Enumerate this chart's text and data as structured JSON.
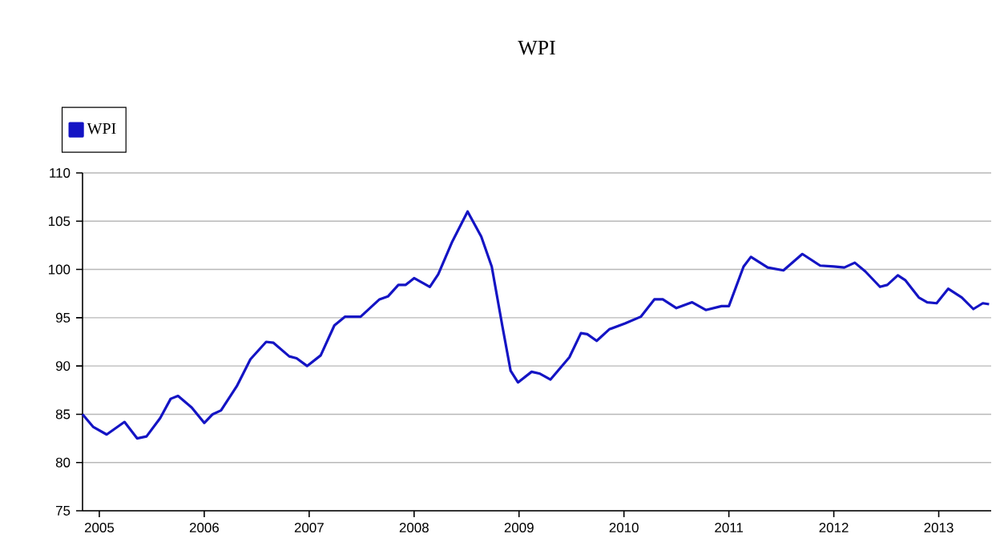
{
  "chart_data": {
    "type": "line",
    "title": "WPI",
    "series": [
      {
        "name": "WPI",
        "color": "#1414c4",
        "x": [
          2004.84,
          2004.94,
          2005.07,
          2005.24,
          2005.36,
          2005.45,
          2005.58,
          2005.68,
          2005.75,
          2005.88,
          2006.0,
          2006.08,
          2006.16,
          2006.31,
          2006.44,
          2006.59,
          2006.66,
          2006.81,
          2006.88,
          2006.98,
          2007.11,
          2007.24,
          2007.34,
          2007.49,
          2007.67,
          2007.75,
          2007.85,
          2007.92,
          2008.0,
          2008.15,
          2008.23,
          2008.36,
          2008.51,
          2008.64,
          2008.74,
          2008.84,
          2008.92,
          2008.99,
          2009.12,
          2009.2,
          2009.3,
          2009.37,
          2009.48,
          2009.59,
          2009.65,
          2009.74,
          2009.86,
          2010.01,
          2010.16,
          2010.29,
          2010.37,
          2010.5,
          2010.65,
          2010.78,
          2010.93,
          2011.0,
          2011.14,
          2011.21,
          2011.37,
          2011.52,
          2011.7,
          2011.87,
          2012.0,
          2012.1,
          2012.2,
          2012.3,
          2012.44,
          2012.51,
          2012.61,
          2012.68,
          2012.81,
          2012.89,
          2012.98,
          2013.09,
          2013.22,
          2013.33,
          2013.42,
          2013.48
        ],
        "values": [
          85.0,
          83.7,
          82.9,
          84.2,
          82.5,
          82.7,
          84.6,
          86.6,
          86.9,
          85.7,
          84.1,
          85.0,
          85.4,
          87.9,
          90.7,
          92.5,
          92.4,
          91.0,
          90.8,
          90.0,
          91.1,
          94.2,
          95.1,
          95.1,
          96.9,
          97.2,
          98.4,
          98.4,
          99.1,
          98.2,
          99.5,
          102.8,
          106.0,
          103.4,
          100.3,
          94.2,
          89.5,
          88.3,
          89.4,
          89.2,
          88.6,
          89.5,
          90.9,
          93.4,
          93.3,
          92.6,
          93.8,
          94.4,
          95.1,
          96.9,
          96.9,
          96.0,
          96.6,
          95.8,
          96.2,
          96.2,
          100.3,
          101.3,
          100.2,
          99.9,
          101.6,
          100.4,
          100.3,
          100.2,
          100.7,
          99.8,
          98.2,
          98.4,
          99.4,
          98.9,
          97.1,
          96.6,
          96.5,
          98.0,
          97.1,
          95.9,
          96.5,
          96.4
        ]
      }
    ],
    "xlim": [
      2004.84,
      2013.5
    ],
    "xticks": [
      2005,
      2006,
      2007,
      2008,
      2009,
      2010,
      2011,
      2012,
      2013
    ],
    "ylim": [
      75,
      110
    ],
    "yticks": [
      75,
      80,
      85,
      90,
      95,
      100,
      105,
      110
    ],
    "grid": "y",
    "legend": "top left",
    "marker": "none",
    "line_style": "solid"
  }
}
